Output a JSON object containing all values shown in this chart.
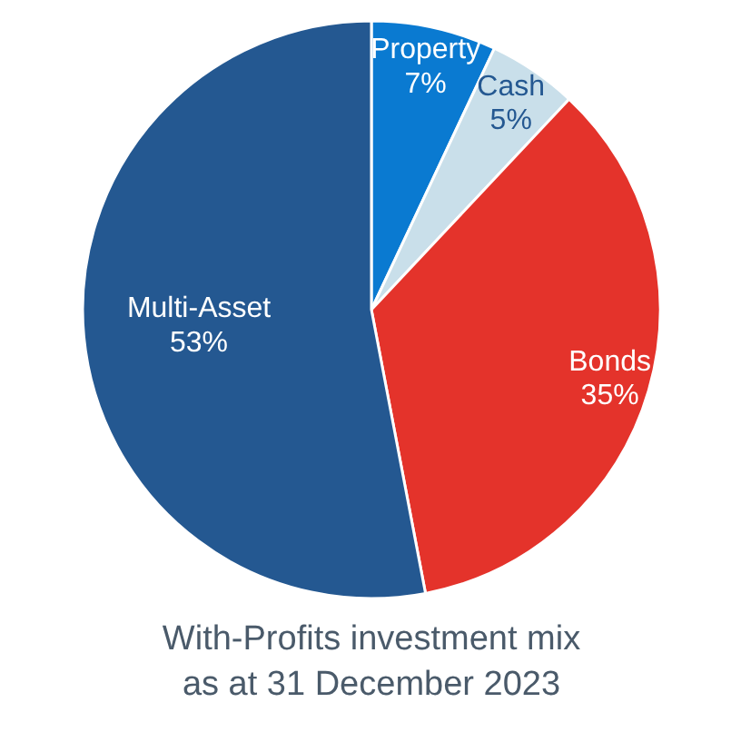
{
  "chart_data": {
    "type": "pie",
    "title": "With-Profits investment mix\nas at 31 December 2023",
    "categories": [
      "Property",
      "Cash",
      "Bonds",
      "Multi-Asset"
    ],
    "values": [
      7,
      5,
      35,
      53
    ],
    "value_labels": [
      "7%",
      "5%",
      "35%",
      "53%"
    ],
    "colors": [
      "#0a7ad1",
      "#c9dfea",
      "#e4332b",
      "#245891"
    ]
  }
}
